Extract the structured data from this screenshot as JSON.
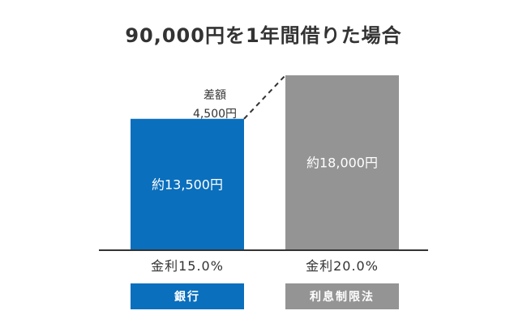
{
  "chart_data": {
    "type": "bar",
    "title": "90,000円を1年間借りた場合",
    "categories": [
      "銀行",
      "利息制限法"
    ],
    "rates": [
      "金利15.0%",
      "金利20.0%"
    ],
    "values": [
      13500,
      18000
    ],
    "value_labels": [
      "約13,500円",
      "約18,000円"
    ],
    "colors": [
      "#0a6fbd",
      "#949494"
    ],
    "ylim": [
      0,
      18000
    ],
    "annotation": {
      "line1": "差額",
      "line2": "4,500円"
    }
  }
}
